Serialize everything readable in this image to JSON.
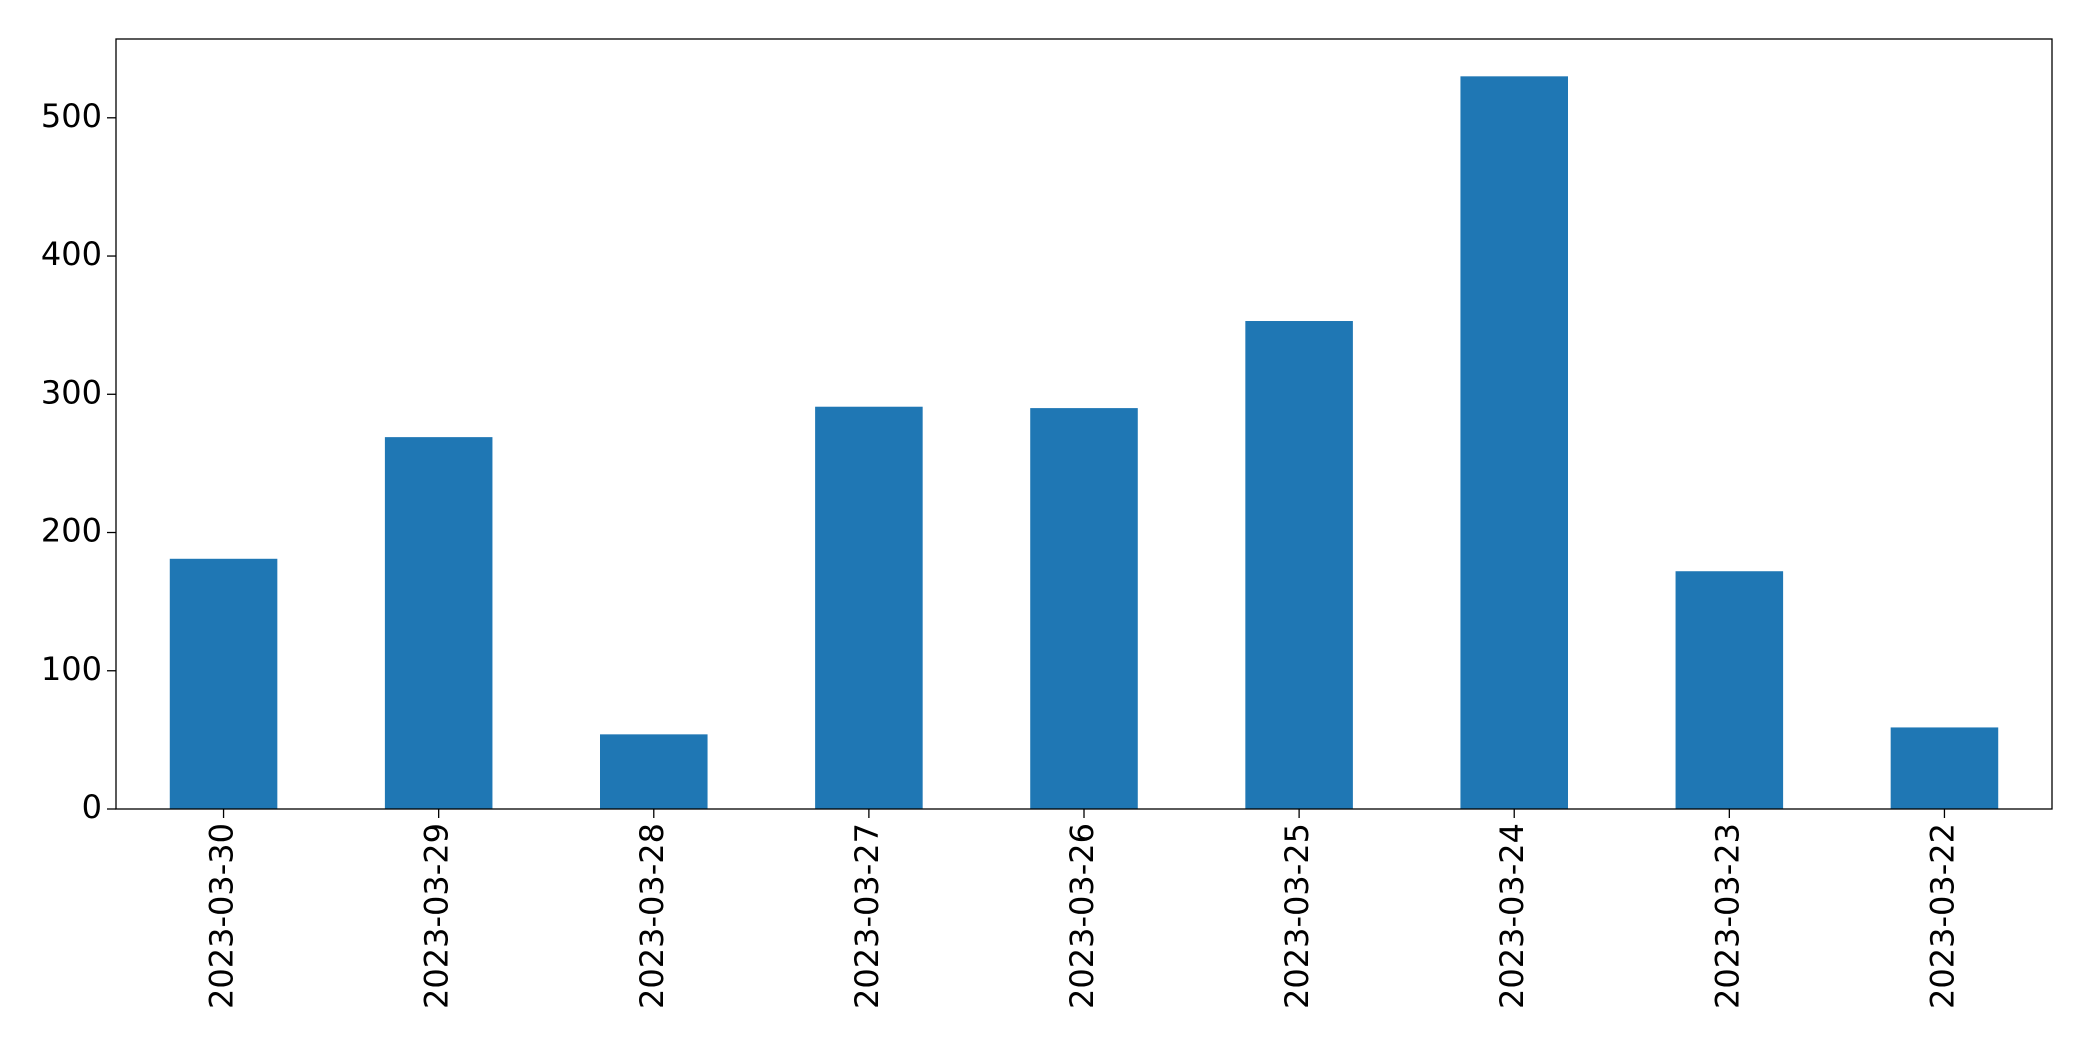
{
  "chart_data": {
    "type": "bar",
    "categories": [
      "2023-03-30",
      "2023-03-29",
      "2023-03-28",
      "2023-03-27",
      "2023-03-26",
      "2023-03-25",
      "2023-03-24",
      "2023-03-23",
      "2023-03-22"
    ],
    "values": [
      181,
      269,
      54,
      291,
      290,
      353,
      530,
      172,
      59
    ],
    "color": "#1f77b4",
    "ylim": [
      0,
      557
    ],
    "yticks": [
      0,
      100,
      200,
      300,
      400,
      500
    ],
    "grid": false
  }
}
